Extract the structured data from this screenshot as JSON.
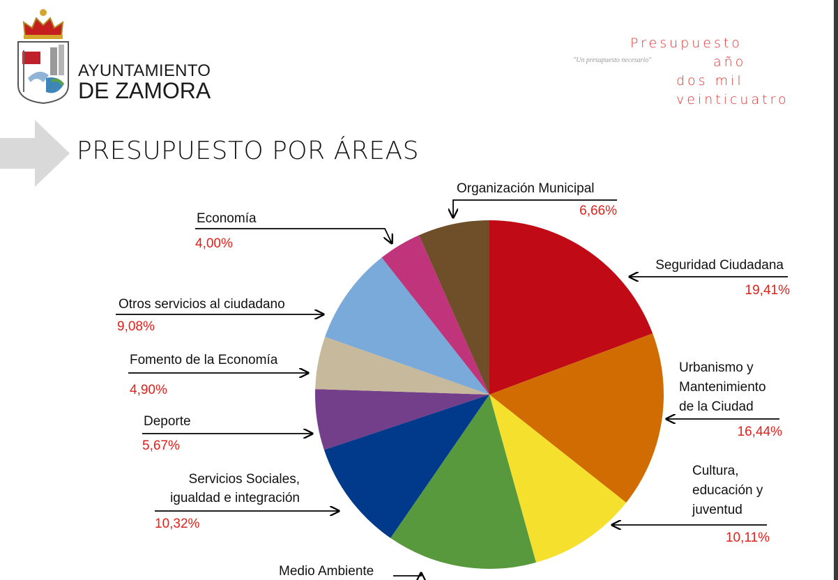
{
  "header": {
    "org_line1": "AYUNTAMIENTO",
    "org_line2": "DE ZAMORA",
    "budget_lines": [
      "Presupuesto",
      "año",
      "dos mil",
      "veinticuatro"
    ],
    "motto": "\"Un presupuesto necesario\"",
    "accent_color": "#e0332f"
  },
  "page": {
    "title": "PRESUPUESTO POR ÁREAS"
  },
  "chart_data": {
    "type": "pie",
    "slices": [
      {
        "label_lines": [
          "Seguridad Ciudadana"
        ],
        "value_label": "19,41%",
        "value": 19.41,
        "color": "#c00a16"
      },
      {
        "label_lines": [
          "Urbanismo y",
          "Mantenimiento",
          "de la Ciudad"
        ],
        "value_label": "16,44%",
        "value": 16.44,
        "color": "#d06c02"
      },
      {
        "label_lines": [
          "Cultura,",
          "educación y",
          "juventud"
        ],
        "value_label": "10,11%",
        "value": 10.11,
        "color": "#f5e02e"
      },
      {
        "label_lines": [
          "Medio Ambiente"
        ],
        "value_label": "",
        "value": 14.0,
        "color": "#58993e"
      },
      {
        "label_lines": [
          "Servicios Sociales,",
          "igualdad e integración"
        ],
        "value_label": "10,32%",
        "value": 10.32,
        "color": "#013a8b"
      },
      {
        "label_lines": [
          "Deporte"
        ],
        "value_label": "5,67%",
        "value": 5.67,
        "color": "#733f8a"
      },
      {
        "label_lines": [
          "Fomento de la Economía"
        ],
        "value_label": "4,90%",
        "value": 4.9,
        "color": "#c7b99b"
      },
      {
        "label_lines": [
          "Otros servicios al ciudadano"
        ],
        "value_label": "9,08%",
        "value": 9.08,
        "color": "#7aaad9"
      },
      {
        "label_lines": [
          "Economía"
        ],
        "value_label": "4,00%",
        "value": 4.0,
        "color": "#bf347a"
      },
      {
        "label_lines": [
          "Organización Municipal"
        ],
        "value_label": "6,66%",
        "value": 6.66,
        "color": "#6e4f2a"
      }
    ]
  }
}
